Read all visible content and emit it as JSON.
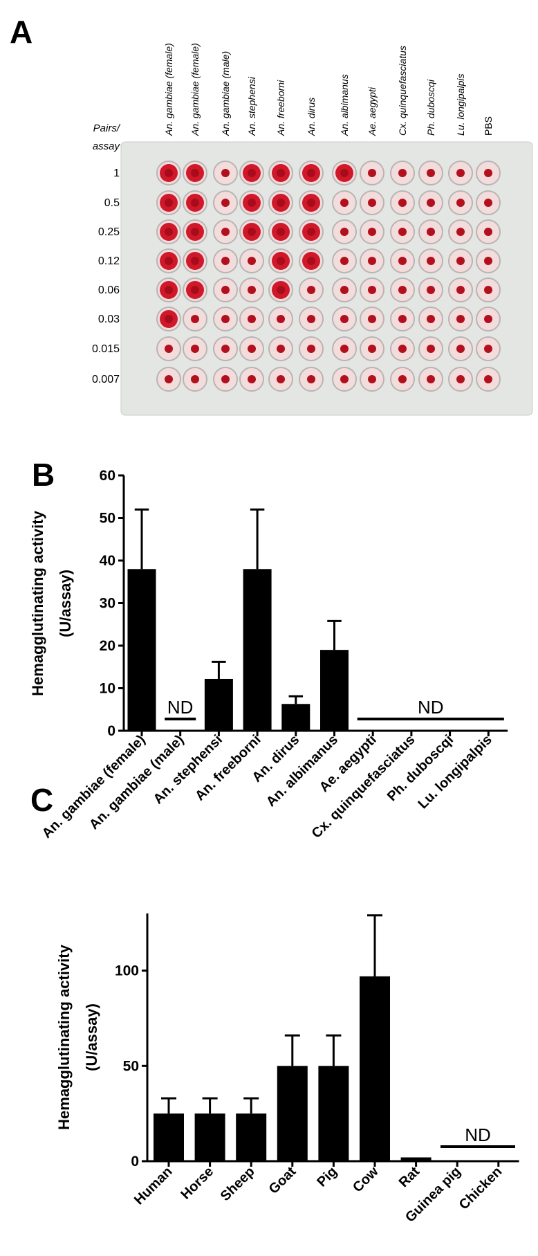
{
  "plate": {
    "panel_label": "A",
    "corner_label": [
      "Pairs/",
      "assay"
    ],
    "columns": [
      "An. gambiae (female)",
      "An. gambiae (female)",
      "An. gambiae (male)",
      "An. stephensi",
      "An. freeborni",
      "An. dirus",
      "An. albimanus",
      "Ae. aegypti",
      "Cx. quinquefasciatus",
      "Ph. duboscqi",
      "Lu. longipalpis",
      "PBS"
    ],
    "rows": [
      "1",
      "0.5",
      "0.25",
      "0.12",
      "0.06",
      "0.03",
      "0.015",
      "0.007"
    ]
  },
  "chart_data": [
    {
      "type": "bar",
      "panel_label": "B",
      "y_label": [
        "Hemagglutinating activity",
        "(U/assay)"
      ],
      "categories": [
        "An. gambiae (female)",
        "An. gambiae (male)",
        "An. stephensi",
        "An. freeborni",
        "An. dirus",
        "An. albimanus",
        "Ae. aegypti",
        "Cx. quinquefasciatus",
        "Ph. duboscqi",
        "Lu. longipalpis"
      ],
      "values": [
        38,
        null,
        12.2,
        38,
        6.3,
        19,
        null,
        null,
        null,
        null
      ],
      "errors": [
        14,
        null,
        4,
        14,
        1.8,
        6.8,
        null,
        null,
        null,
        null
      ],
      "color": "#000000",
      "ylim": [
        0,
        60
      ],
      "yticks": [
        0,
        10,
        20,
        30,
        40,
        50,
        60
      ],
      "annotations": [
        {
          "text": "ND",
          "span": [
            "An. gambiae (male)",
            "An. gambiae (male)"
          ]
        },
        {
          "text": "ND",
          "span": [
            "Ae. aegypti",
            "Lu. longipalpis"
          ]
        }
      ]
    },
    {
      "type": "bar",
      "panel_label": "C",
      "y_label": [
        "Hemagglutinating activity",
        "(U/assay)"
      ],
      "categories": [
        "Human",
        "Horse",
        "Sheep",
        "Goat",
        "Pig",
        "Cow",
        "Rat",
        "Guinea pig",
        "Chicken"
      ],
      "values": [
        25,
        25,
        25,
        50,
        50,
        97,
        2,
        null,
        null
      ],
      "errors": [
        8,
        8,
        8,
        16,
        16,
        32,
        null,
        null,
        null
      ],
      "color": "#000000",
      "ylim": [
        0,
        130
      ],
      "yticks": [
        0,
        50,
        100
      ],
      "annotations": [
        {
          "text": "ND",
          "span": [
            "Guinea pig",
            "Chicken"
          ]
        }
      ]
    }
  ]
}
